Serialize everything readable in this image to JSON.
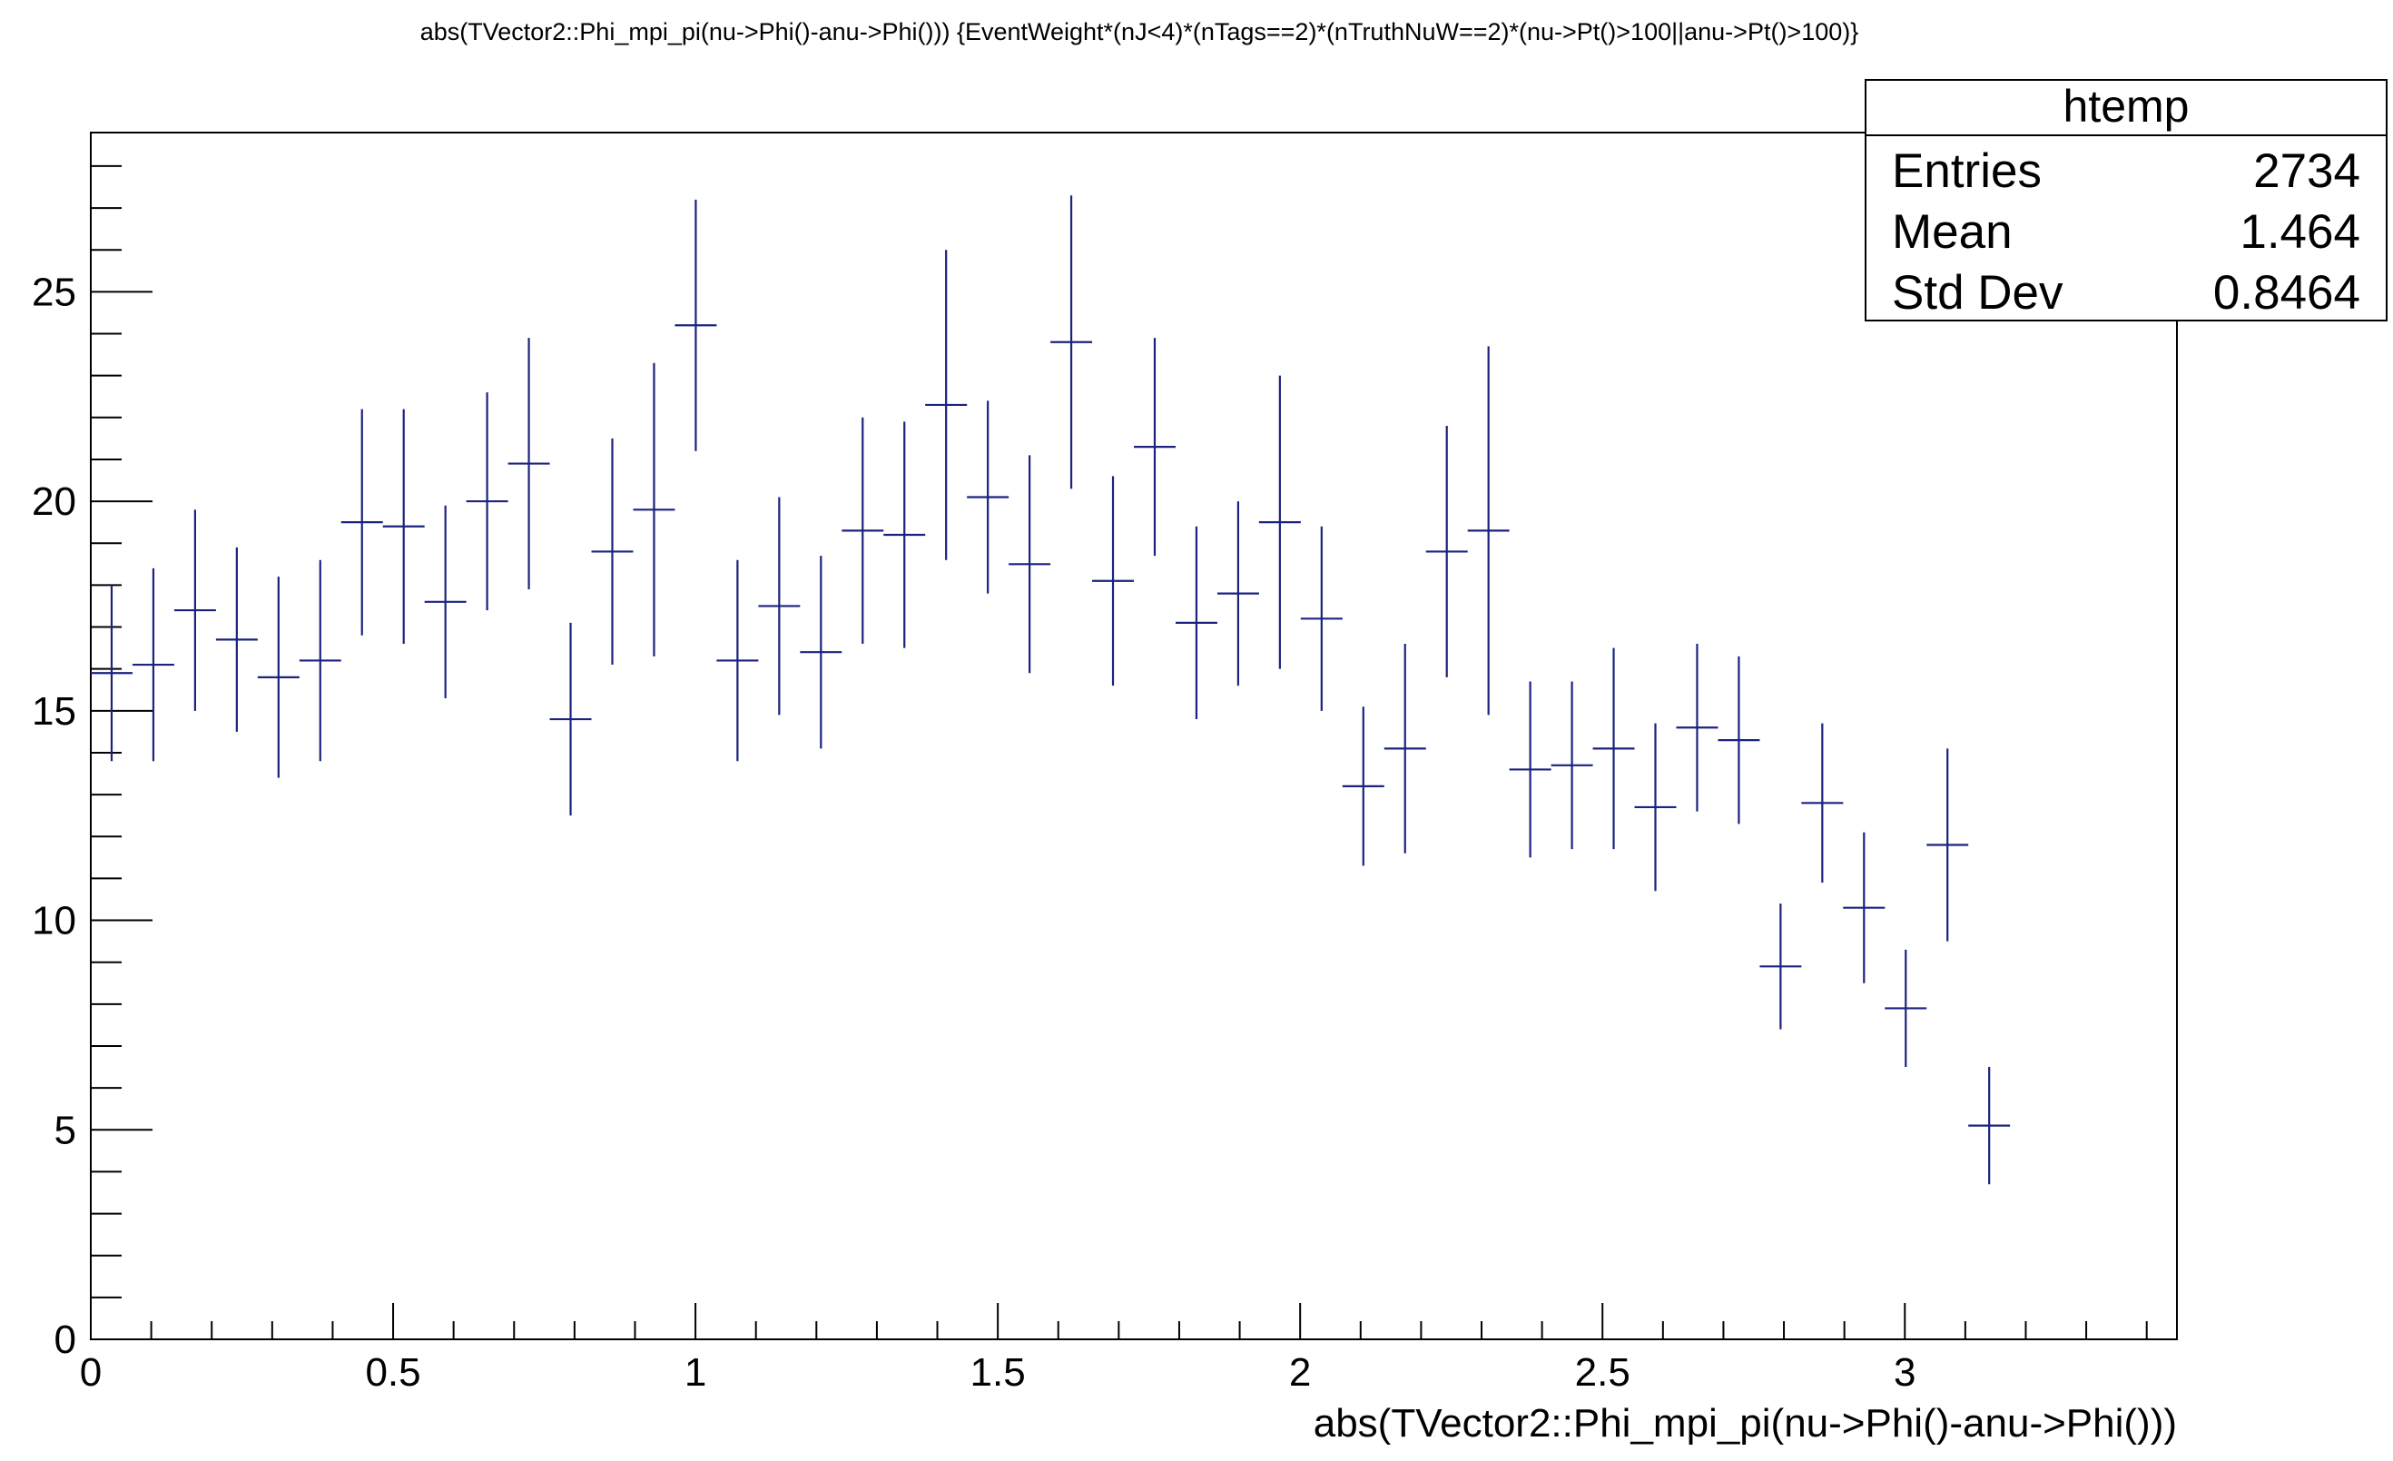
{
  "chart_data": {
    "type": "scatter",
    "style": "histogram-errorbars",
    "title": "abs(TVector2::Phi_mpi_pi(nu->Phi()-anu->Phi())) {EventWeight*(nJ<4)*(nTags==2)*(nTruthNuW==2)*(nu->Pt()>100||anu->Pt()>100)}",
    "xlabel": "abs(TVector2::Phi_mpi_pi(nu->Phi()-anu->Phi()))",
    "ylabel": "",
    "xlim": [
      0,
      3.45
    ],
    "ylim": [
      0,
      28.8
    ],
    "x_ticks": [
      "0",
      "0.5",
      "1",
      "1.5",
      "2",
      "2.5",
      "3"
    ],
    "y_ticks": [
      "0",
      "5",
      "10",
      "15",
      "20",
      "25"
    ],
    "grid": false,
    "bin_width": 0.069,
    "series": [
      {
        "color": "#1a237e",
        "x": [
          0.0345,
          0.1035,
          0.1725,
          0.2415,
          0.3105,
          0.3795,
          0.4485,
          0.5175,
          0.5865,
          0.6555,
          0.7245,
          0.7935,
          0.8625,
          0.9315,
          1.0005,
          1.0695,
          1.1385,
          1.2075,
          1.2765,
          1.3455,
          1.4145,
          1.4835,
          1.5525,
          1.6215,
          1.6905,
          1.7595,
          1.8285,
          1.8975,
          1.9665,
          2.0355,
          2.1045,
          2.1735,
          2.2425,
          2.3115,
          2.3805,
          2.4495,
          2.5185,
          2.5875,
          2.6565,
          2.7255,
          2.7945,
          2.8635,
          2.9325,
          3.0015,
          3.0705,
          3.1395
        ],
        "y": [
          15.9,
          16.1,
          17.4,
          16.7,
          15.8,
          16.2,
          19.5,
          19.4,
          17.6,
          20.0,
          20.9,
          14.8,
          18.8,
          19.8,
          24.2,
          16.2,
          17.5,
          16.4,
          19.3,
          19.2,
          22.3,
          20.1,
          18.5,
          23.8,
          18.1,
          21.3,
          17.1,
          17.8,
          19.5,
          17.2,
          13.2,
          14.1,
          18.8,
          19.3,
          13.6,
          13.7,
          14.1,
          12.7,
          14.6,
          14.3,
          8.9,
          12.8,
          10.3,
          7.9,
          11.8,
          5.1
        ],
        "yerr": [
          2.1,
          2.3,
          2.4,
          2.2,
          2.4,
          2.4,
          2.7,
          2.8,
          2.3,
          2.6,
          3.0,
          2.3,
          2.7,
          3.5,
          3.0,
          2.4,
          2.6,
          2.3,
          2.7,
          2.7,
          3.7,
          2.3,
          2.6,
          3.5,
          2.5,
          2.6,
          2.3,
          2.2,
          3.5,
          2.2,
          1.9,
          2.5,
          3.0,
          4.4,
          2.1,
          2.0,
          2.4,
          2.0,
          2.0,
          2.0,
          1.5,
          1.9,
          1.8,
          1.4,
          2.3,
          1.4
        ]
      }
    ],
    "stats_box": {
      "title": "htemp",
      "rows": [
        {
          "label": "Entries",
          "value": "2734"
        },
        {
          "label": "Mean",
          "value": "1.464"
        },
        {
          "label": "Std Dev",
          "value": "0.8464"
        }
      ]
    }
  }
}
